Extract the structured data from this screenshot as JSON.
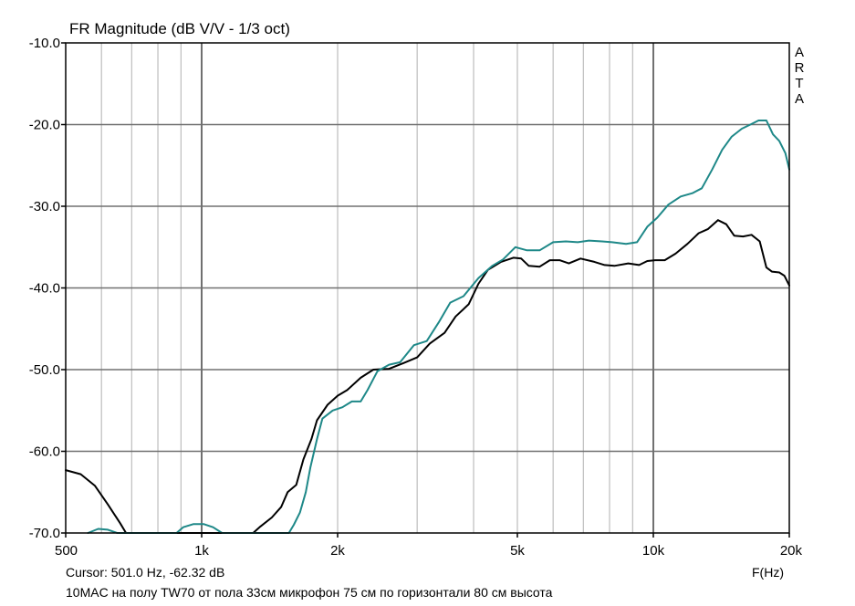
{
  "chart_data": {
    "type": "line",
    "title": "FR Magnitude (dB V/V - 1/3 oct)",
    "xlabel": "F(Hz)",
    "ylabel": "",
    "xscale": "log",
    "xlim": [
      500,
      20000
    ],
    "ylim": [
      -70,
      -10
    ],
    "grid": true,
    "x_tick_labels": [
      {
        "value": 500,
        "label": "500"
      },
      {
        "value": 1000,
        "label": "1k"
      },
      {
        "value": 2000,
        "label": "2k"
      },
      {
        "value": 5000,
        "label": "5k"
      },
      {
        "value": 10000,
        "label": "10k"
      },
      {
        "value": 20000,
        "label": "20k"
      }
    ],
    "y_tick_labels": [
      {
        "value": -10,
        "label": "-10.0"
      },
      {
        "value": -20,
        "label": "-20.0"
      },
      {
        "value": -30,
        "label": "-30.0"
      },
      {
        "value": -40,
        "label": "-40.0"
      },
      {
        "value": -50,
        "label": "-50.0"
      },
      {
        "value": -60,
        "label": "-60.0"
      },
      {
        "value": -70,
        "label": "-70.0"
      }
    ],
    "series": [
      {
        "color": "#000000",
        "points": [
          [
            500,
            -62.3
          ],
          [
            540,
            -62.8
          ],
          [
            580,
            -64.2
          ],
          [
            620,
            -66.5
          ],
          [
            660,
            -68.8
          ],
          [
            680,
            -70.0
          ],
          [
            1300,
            -70.0
          ],
          [
            1350,
            -69.2
          ],
          [
            1430,
            -68.1
          ],
          [
            1500,
            -66.8
          ],
          [
            1550,
            -65.0
          ],
          [
            1620,
            -64.1
          ],
          [
            1680,
            -61.0
          ],
          [
            1750,
            -58.5
          ],
          [
            1800,
            -56.2
          ],
          [
            1900,
            -54.3
          ],
          [
            2000,
            -53.2
          ],
          [
            2100,
            -52.5
          ],
          [
            2250,
            -51.0
          ],
          [
            2400,
            -50.0
          ],
          [
            2600,
            -49.9
          ],
          [
            2800,
            -49.2
          ],
          [
            3000,
            -48.5
          ],
          [
            3200,
            -46.8
          ],
          [
            3450,
            -45.5
          ],
          [
            3650,
            -43.5
          ],
          [
            3900,
            -42.0
          ],
          [
            4100,
            -39.5
          ],
          [
            4300,
            -37.8
          ],
          [
            4600,
            -36.8
          ],
          [
            4900,
            -36.3
          ],
          [
            5100,
            -36.4
          ],
          [
            5300,
            -37.3
          ],
          [
            5600,
            -37.4
          ],
          [
            5900,
            -36.6
          ],
          [
            6200,
            -36.6
          ],
          [
            6500,
            -37.0
          ],
          [
            6900,
            -36.4
          ],
          [
            7400,
            -36.8
          ],
          [
            7800,
            -37.2
          ],
          [
            8200,
            -37.3
          ],
          [
            8800,
            -37.0
          ],
          [
            9300,
            -37.2
          ],
          [
            9700,
            -36.7
          ],
          [
            10100,
            -36.6
          ],
          [
            10600,
            -36.6
          ],
          [
            11200,
            -35.8
          ],
          [
            11900,
            -34.6
          ],
          [
            12600,
            -33.3
          ],
          [
            13200,
            -32.8
          ],
          [
            13900,
            -31.7
          ],
          [
            14500,
            -32.2
          ],
          [
            15100,
            -33.6
          ],
          [
            15800,
            -33.7
          ],
          [
            16500,
            -33.5
          ],
          [
            17200,
            -34.3
          ],
          [
            17800,
            -37.5
          ],
          [
            18300,
            -38.0
          ],
          [
            19000,
            -38.1
          ],
          [
            19500,
            -38.5
          ],
          [
            20000,
            -39.7
          ]
        ]
      },
      {
        "color": "#1e8888",
        "points": [
          [
            560,
            -70.0
          ],
          [
            590,
            -69.5
          ],
          [
            620,
            -69.6
          ],
          [
            650,
            -70.0
          ],
          [
            880,
            -70.0
          ],
          [
            910,
            -69.3
          ],
          [
            960,
            -68.9
          ],
          [
            1010,
            -68.9
          ],
          [
            1060,
            -69.3
          ],
          [
            1110,
            -70.0
          ],
          [
            1560,
            -70.0
          ],
          [
            1600,
            -69.0
          ],
          [
            1650,
            -67.5
          ],
          [
            1700,
            -65.0
          ],
          [
            1740,
            -62.0
          ],
          [
            1800,
            -58.5
          ],
          [
            1850,
            -56.0
          ],
          [
            1950,
            -55.0
          ],
          [
            2050,
            -54.6
          ],
          [
            2150,
            -53.9
          ],
          [
            2250,
            -53.9
          ],
          [
            2330,
            -52.5
          ],
          [
            2450,
            -50.2
          ],
          [
            2600,
            -49.4
          ],
          [
            2750,
            -49.1
          ],
          [
            2950,
            -47.0
          ],
          [
            3150,
            -46.5
          ],
          [
            3350,
            -44.2
          ],
          [
            3550,
            -41.8
          ],
          [
            3800,
            -41.0
          ],
          [
            4100,
            -38.8
          ],
          [
            4400,
            -37.3
          ],
          [
            4650,
            -36.5
          ],
          [
            4950,
            -35.0
          ],
          [
            5250,
            -35.4
          ],
          [
            5600,
            -35.4
          ],
          [
            6000,
            -34.4
          ],
          [
            6400,
            -34.3
          ],
          [
            6800,
            -34.4
          ],
          [
            7200,
            -34.2
          ],
          [
            7700,
            -34.3
          ],
          [
            8100,
            -34.4
          ],
          [
            8700,
            -34.6
          ],
          [
            9200,
            -34.4
          ],
          [
            9700,
            -32.5
          ],
          [
            10200,
            -31.4
          ],
          [
            10800,
            -29.8
          ],
          [
            11500,
            -28.8
          ],
          [
            12200,
            -28.4
          ],
          [
            12800,
            -27.8
          ],
          [
            13500,
            -25.5
          ],
          [
            14200,
            -23.1
          ],
          [
            14900,
            -21.5
          ],
          [
            15700,
            -20.5
          ],
          [
            16400,
            -20.0
          ],
          [
            17100,
            -19.5
          ],
          [
            17800,
            -19.5
          ],
          [
            18400,
            -21.2
          ],
          [
            19000,
            -22.0
          ],
          [
            19600,
            -23.5
          ],
          [
            20000,
            -25.5
          ]
        ]
      }
    ]
  },
  "brand_letters": [
    "A",
    "R",
    "T",
    "A"
  ],
  "footer": {
    "cursor": "Cursor: 501.0 Hz, -62.32 dB",
    "unit": "F(Hz)",
    "note": "10MAC на полу TW70 от пола 33см микрофон 75 см по горизонтали 80 см высота"
  }
}
